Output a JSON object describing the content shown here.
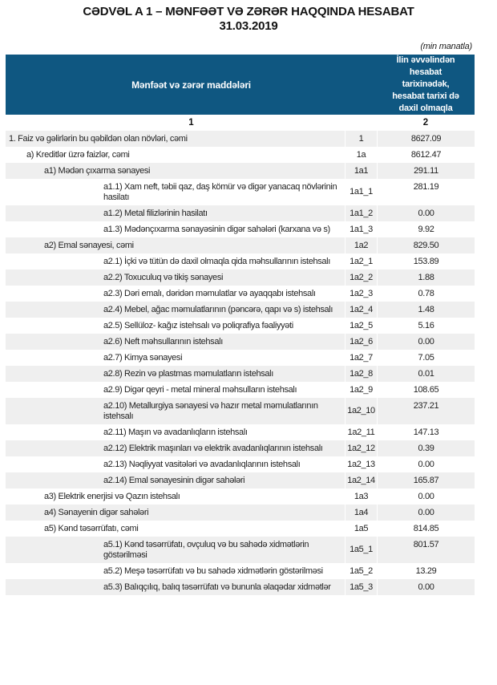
{
  "title": {
    "line1": "CƏDVƏL A 1 – MƏNFƏƏT VƏ ZƏRƏR HAQQINDA HESABAT",
    "date": "31.03.2019"
  },
  "unit_note": "(min manatla)",
  "colors": {
    "header_blue": "#0f5781",
    "zebra_gray": "#efefef",
    "text": "#1f1f1f"
  },
  "table": {
    "items_header": "Mənfəət və zərər maddələri",
    "value_header": "İlin əvvəlindən\nhesabat\ntarixinədək,\nhesabat tarixi də\ndaxil olmaqla",
    "col_num_items": "1",
    "col_num_value": "2",
    "rows": [
      {
        "indent": 0,
        "label": "1. Faiz və gəlirlərin bu qəbildən olan növləri, cəmi",
        "code": "1",
        "value": "8627.09"
      },
      {
        "indent": 1,
        "label": "a) Kreditlər üzrə faizlər, cəmi",
        "code": "1a",
        "value": "8612.47"
      },
      {
        "indent": 2,
        "label": "a1) Mədən çıxarma sənayesi",
        "code": "1a1",
        "value": "291.11"
      },
      {
        "indent": 3,
        "label": "a1.1) Xam neft, təbii qaz, daş kömür və digər yanacaq növlərinin hasilatı",
        "code": "1a1_1",
        "value": "281.19"
      },
      {
        "indent": 3,
        "label": "a1.2) Metal filizlərinin hasilatı",
        "code": "1a1_2",
        "value": "0.00"
      },
      {
        "indent": 3,
        "label": "a1.3) Mədənçıxarma sənayəsinin digər sahələri (karxana və s)",
        "code": "1a1_3",
        "value": "9.92"
      },
      {
        "indent": 2,
        "label": "a2) Emal sənayesi, cəmi",
        "code": "1a2",
        "value": "829.50"
      },
      {
        "indent": 3,
        "label": "a2.1) İçki və tütün də daxil olmaqla qida məhsullarının istehsalı",
        "code": "1a2_1",
        "value": "153.89"
      },
      {
        "indent": 3,
        "label": "a2.2) Toxuculuq və tikiş sənayesi",
        "code": "1a2_2",
        "value": "1.88"
      },
      {
        "indent": 3,
        "label": "a2.3) Dəri emalı, dəridən məmulatlar və ayaqqabı istehsalı",
        "code": "1a2_3",
        "value": "0.78"
      },
      {
        "indent": 3,
        "label": "a2.4) Mebel, ağac məmulatlarının (pəncərə, qapı və s) istehsalı",
        "code": "1a2_4",
        "value": "1.48"
      },
      {
        "indent": 3,
        "label": "a2.5) Sellüloz- kağız istehsalı və poliqrafiya fəaliyyəti",
        "code": "1a2_5",
        "value": "5.16"
      },
      {
        "indent": 3,
        "label": "a2.6) Neft məhsullarının istehsalı",
        "code": "1a2_6",
        "value": "0.00"
      },
      {
        "indent": 3,
        "label": "a2.7) Kimya sənayesi",
        "code": "1a2_7",
        "value": "7.05"
      },
      {
        "indent": 3,
        "label": "a2.8) Rezin və plastmas məmulatların istehsalı",
        "code": "1a2_8",
        "value": "0.01"
      },
      {
        "indent": 3,
        "label": "a2.9) Digər qeyri - metal mineral məhsulların istehsalı",
        "code": "1a2_9",
        "value": "108.65"
      },
      {
        "indent": 3,
        "label": "a2.10) Metallurgiya sənayesi və hazır metal məmulatlarının istehsalı",
        "code": "1a2_10",
        "value": "237.21"
      },
      {
        "indent": 3,
        "label": "a2.11) Maşın və avadanlıqların istehsalı",
        "code": "1a2_11",
        "value": "147.13"
      },
      {
        "indent": 3,
        "label": "a2.12) Elektrik maşınları və elektrik avadanlıqlarının istehsalı",
        "code": "1a2_12",
        "value": "0.39"
      },
      {
        "indent": 3,
        "label": "a2.13) Nəqliyyat vasitələri və avadanlıqlarının istehsalı",
        "code": "1a2_13",
        "value": "0.00"
      },
      {
        "indent": 3,
        "label": "a2.14) Emal sənayesinin digər sahələri",
        "code": "1a2_14",
        "value": "165.87"
      },
      {
        "indent": 2,
        "label": "a3) Elektrik enerjisi və Qazın istehsalı",
        "code": "1a3",
        "value": "0.00"
      },
      {
        "indent": 2,
        "label": "a4) Sənayenin digər sahələri",
        "code": "1a4",
        "value": "0.00"
      },
      {
        "indent": 2,
        "label": "a5) Kənd təsərrüfatı, cəmi",
        "code": "1a5",
        "value": "814.85"
      },
      {
        "indent": 3,
        "label": "a5.1) Kənd təsərrüfatı, ovçuluq və bu sahədə xidmətlərin göstərilməsi",
        "code": "1a5_1",
        "value": "801.57"
      },
      {
        "indent": 3,
        "label": "a5.2) Meşə təsərrüfatı və bu sahədə xidmətlərin göstərilməsi",
        "code": "1a5_2",
        "value": "13.29"
      },
      {
        "indent": 3,
        "label": "a5.3) Balıqçılıq, balıq təsərrüfatı və bununla əlaqədar xidmətlər",
        "code": "1a5_3",
        "value": "0.00"
      }
    ]
  }
}
